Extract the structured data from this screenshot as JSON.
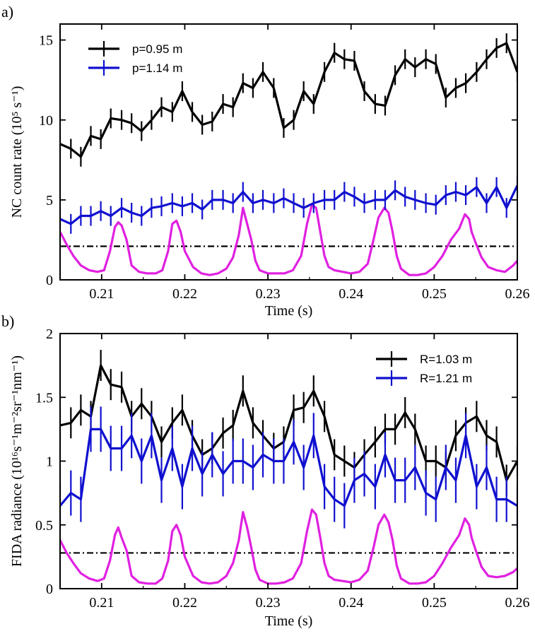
{
  "chart_data": [
    {
      "panel_label": "a)",
      "type": "line",
      "xlabel": "Time (s)",
      "ylabel": "NC count rate (10⁵ s⁻¹)",
      "xlim": [
        0.205,
        0.26
      ],
      "ylim": [
        0,
        16
      ],
      "xticks": [
        0.21,
        0.22,
        0.23,
        0.24,
        0.25,
        0.26
      ],
      "xtick_labels": [
        "0.21",
        "0.22",
        "0.23",
        "0.24",
        "0.25",
        "0.26"
      ],
      "yticks": [
        0,
        5,
        10,
        15
      ],
      "ytick_labels": [
        "0",
        "5",
        "10",
        "15"
      ],
      "legend_position": "top-left",
      "hline": 2.1,
      "series": [
        {
          "name": "p=0.95 m",
          "color": "#000000",
          "x": [
            0.205,
            0.2063,
            0.2075,
            0.2087,
            0.2099,
            0.2111,
            0.2124,
            0.2136,
            0.2148,
            0.216,
            0.2172,
            0.2185,
            0.2197,
            0.2209,
            0.2221,
            0.2233,
            0.2246,
            0.2258,
            0.227,
            0.2282,
            0.2294,
            0.2307,
            0.2319,
            0.2331,
            0.2343,
            0.2355,
            0.2368,
            0.238,
            0.2392,
            0.2404,
            0.2416,
            0.2429,
            0.2441,
            0.2453,
            0.2465,
            0.2477,
            0.249,
            0.2502,
            0.2514,
            0.2526,
            0.2538,
            0.2551,
            0.2563,
            0.2575,
            0.2587,
            0.26
          ],
          "y": [
            8.5,
            8.2,
            7.7,
            9.0,
            8.8,
            10.1,
            10.0,
            9.8,
            9.3,
            10.0,
            10.8,
            10.5,
            11.8,
            10.5,
            9.7,
            9.9,
            11.0,
            10.8,
            12.3,
            12.0,
            13.0,
            12.0,
            9.5,
            10.0,
            11.8,
            11.0,
            13.0,
            14.2,
            13.8,
            13.7,
            11.8,
            11.0,
            10.9,
            12.8,
            13.8,
            13.3,
            13.8,
            13.5,
            11.4,
            12.0,
            12.3,
            13.0,
            13.8,
            14.5,
            14.8,
            13.0
          ]
        },
        {
          "name": "p=1.14 m",
          "color": "#1010d0",
          "x": [
            0.205,
            0.2063,
            0.2075,
            0.2087,
            0.2099,
            0.2111,
            0.2124,
            0.2136,
            0.2148,
            0.216,
            0.2172,
            0.2185,
            0.2197,
            0.2209,
            0.2221,
            0.2233,
            0.2246,
            0.2258,
            0.227,
            0.2282,
            0.2294,
            0.2307,
            0.2319,
            0.2331,
            0.2343,
            0.2355,
            0.2368,
            0.238,
            0.2392,
            0.2404,
            0.2416,
            0.2429,
            0.2441,
            0.2453,
            0.2465,
            0.2477,
            0.249,
            0.2502,
            0.2514,
            0.2526,
            0.2538,
            0.2551,
            0.2563,
            0.2575,
            0.2587,
            0.26
          ],
          "y": [
            3.8,
            3.5,
            4.0,
            4.0,
            4.3,
            4.0,
            4.5,
            4.2,
            4.0,
            4.5,
            4.6,
            4.8,
            4.6,
            4.8,
            4.4,
            5.0,
            5.0,
            4.8,
            5.5,
            4.8,
            5.0,
            4.8,
            5.1,
            4.8,
            4.5,
            4.8,
            5.0,
            5.0,
            5.5,
            5.2,
            4.8,
            5.0,
            5.0,
            5.6,
            5.2,
            5.0,
            4.8,
            4.7,
            5.3,
            5.5,
            5.3,
            5.8,
            4.8,
            5.8,
            4.5,
            5.9
          ]
        }
      ],
      "magenta_trace": {
        "color": "#e020e0",
        "x": [
          0.205,
          0.2058,
          0.2066,
          0.2075,
          0.2085,
          0.2095,
          0.2103,
          0.211,
          0.2116,
          0.212,
          0.2124,
          0.213,
          0.2136,
          0.2145,
          0.2155,
          0.2165,
          0.2173,
          0.218,
          0.2185,
          0.219,
          0.2195,
          0.22,
          0.221,
          0.222,
          0.223,
          0.224,
          0.225,
          0.2258,
          0.2265,
          0.227,
          0.2275,
          0.228,
          0.2285,
          0.229,
          0.23,
          0.231,
          0.232,
          0.233,
          0.234,
          0.2347,
          0.2353,
          0.2358,
          0.2363,
          0.2368,
          0.2373,
          0.238,
          0.239,
          0.24,
          0.241,
          0.242,
          0.2427,
          0.2433,
          0.244,
          0.2445,
          0.245,
          0.2455,
          0.246,
          0.247,
          0.248,
          0.249,
          0.25,
          0.251,
          0.252,
          0.253,
          0.2537,
          0.2542,
          0.2545,
          0.255,
          0.2557,
          0.2565,
          0.2575,
          0.2585,
          0.2595,
          0.26
        ],
        "y": [
          3.0,
          2.2,
          1.5,
          0.9,
          0.6,
          0.5,
          0.6,
          1.8,
          3.3,
          3.6,
          3.4,
          2.5,
          0.9,
          0.5,
          0.4,
          0.4,
          0.6,
          1.8,
          3.5,
          3.7,
          3.0,
          1.8,
          0.8,
          0.4,
          0.3,
          0.4,
          0.7,
          1.4,
          2.8,
          4.5,
          3.5,
          2.5,
          1.2,
          0.6,
          0.4,
          0.4,
          0.4,
          0.6,
          1.5,
          3.5,
          4.7,
          4.5,
          3.0,
          1.5,
          0.8,
          0.6,
          0.5,
          0.4,
          0.5,
          1.0,
          2.5,
          3.9,
          4.5,
          4.2,
          3.0,
          1.5,
          0.7,
          0.3,
          0.3,
          0.4,
          0.8,
          1.5,
          2.5,
          3.2,
          4.1,
          3.8,
          3.0,
          2.3,
          1.4,
          0.8,
          0.6,
          0.5,
          0.9,
          1.2
        ]
      }
    },
    {
      "panel_label": "b)",
      "type": "line",
      "xlabel": "Time (s)",
      "ylabel": "FIDA radiance (10¹⁶s⁻¹m⁻²sr⁻¹nm⁻¹)",
      "xlim": [
        0.205,
        0.26
      ],
      "ylim": [
        0,
        2
      ],
      "xticks": [
        0.21,
        0.22,
        0.23,
        0.24,
        0.25,
        0.26
      ],
      "xtick_labels": [
        "0.21",
        "0.22",
        "0.23",
        "0.24",
        "0.25",
        "0.26"
      ],
      "yticks": [
        0,
        0.5,
        1,
        1.5,
        2
      ],
      "ytick_labels": [
        "0",
        "0.5",
        "1",
        "1.5",
        "2"
      ],
      "legend_position": "top-right",
      "hline": 0.28,
      "series": [
        {
          "name": "R=1.03 m",
          "color": "#000000",
          "x": [
            0.205,
            0.2063,
            0.2075,
            0.2087,
            0.2099,
            0.2111,
            0.2124,
            0.2136,
            0.2148,
            0.216,
            0.2172,
            0.2185,
            0.2197,
            0.2209,
            0.2221,
            0.2233,
            0.2246,
            0.2258,
            0.227,
            0.2282,
            0.2294,
            0.2307,
            0.2319,
            0.2331,
            0.2343,
            0.2355,
            0.2368,
            0.238,
            0.2392,
            0.2404,
            0.2416,
            0.2429,
            0.2441,
            0.2453,
            0.2465,
            0.2477,
            0.249,
            0.2502,
            0.2514,
            0.2526,
            0.2538,
            0.2551,
            0.2563,
            0.2575,
            0.2587,
            0.26
          ],
          "y": [
            1.28,
            1.3,
            1.4,
            1.35,
            1.75,
            1.6,
            1.58,
            1.35,
            1.45,
            1.35,
            1.15,
            1.3,
            1.4,
            1.2,
            1.05,
            1.1,
            1.22,
            1.28,
            1.55,
            1.3,
            1.2,
            1.1,
            1.15,
            1.4,
            1.42,
            1.55,
            1.35,
            1.05,
            1.0,
            0.95,
            1.05,
            1.15,
            1.25,
            1.25,
            1.38,
            1.25,
            1.0,
            1.0,
            0.95,
            1.2,
            1.3,
            1.35,
            1.2,
            1.15,
            0.85,
            1.0
          ]
        },
        {
          "name": "R=1.21 m",
          "color": "#1010d0",
          "x": [
            0.205,
            0.2063,
            0.2075,
            0.2087,
            0.2099,
            0.2111,
            0.2124,
            0.2136,
            0.2148,
            0.216,
            0.2172,
            0.2185,
            0.2197,
            0.2209,
            0.2221,
            0.2233,
            0.2246,
            0.2258,
            0.227,
            0.2282,
            0.2294,
            0.2307,
            0.2319,
            0.2331,
            0.2343,
            0.2355,
            0.2368,
            0.238,
            0.2392,
            0.2404,
            0.2416,
            0.2429,
            0.2441,
            0.2453,
            0.2465,
            0.2477,
            0.249,
            0.2502,
            0.2514,
            0.2526,
            0.2538,
            0.2551,
            0.2563,
            0.2575,
            0.2587,
            0.26
          ],
          "y": [
            0.65,
            0.75,
            0.7,
            1.25,
            1.25,
            1.1,
            1.1,
            1.2,
            1.0,
            1.2,
            0.85,
            1.1,
            0.8,
            1.1,
            0.9,
            1.05,
            0.9,
            1.0,
            1.0,
            0.95,
            1.05,
            1.0,
            1.0,
            1.15,
            0.95,
            1.2,
            0.8,
            0.7,
            0.65,
            0.85,
            0.9,
            0.8,
            1.05,
            0.85,
            0.85,
            0.95,
            0.75,
            0.7,
            0.95,
            0.85,
            1.2,
            0.8,
            0.95,
            0.7,
            0.7,
            0.65
          ]
        }
      ],
      "magenta_trace": {
        "color": "#e020e0",
        "x": [
          0.205,
          0.2058,
          0.2066,
          0.2075,
          0.2085,
          0.2095,
          0.2103,
          0.211,
          0.2116,
          0.212,
          0.2124,
          0.213,
          0.2136,
          0.2145,
          0.2155,
          0.2165,
          0.2173,
          0.218,
          0.2185,
          0.219,
          0.2195,
          0.22,
          0.221,
          0.222,
          0.223,
          0.224,
          0.225,
          0.2258,
          0.2265,
          0.227,
          0.2275,
          0.228,
          0.2285,
          0.229,
          0.23,
          0.231,
          0.232,
          0.233,
          0.234,
          0.2347,
          0.2353,
          0.2358,
          0.2363,
          0.2368,
          0.2373,
          0.238,
          0.239,
          0.24,
          0.241,
          0.242,
          0.2427,
          0.2433,
          0.244,
          0.2445,
          0.245,
          0.2455,
          0.246,
          0.247,
          0.248,
          0.249,
          0.25,
          0.251,
          0.252,
          0.253,
          0.2537,
          0.2542,
          0.2545,
          0.255,
          0.2557,
          0.2565,
          0.2575,
          0.2585,
          0.2595,
          0.26
        ],
        "y": [
          0.38,
          0.28,
          0.2,
          0.12,
          0.08,
          0.06,
          0.08,
          0.22,
          0.42,
          0.48,
          0.4,
          0.3,
          0.1,
          0.05,
          0.04,
          0.04,
          0.08,
          0.22,
          0.45,
          0.5,
          0.42,
          0.25,
          0.1,
          0.05,
          0.04,
          0.05,
          0.1,
          0.2,
          0.38,
          0.6,
          0.48,
          0.32,
          0.15,
          0.07,
          0.04,
          0.04,
          0.05,
          0.08,
          0.2,
          0.45,
          0.62,
          0.58,
          0.4,
          0.2,
          0.1,
          0.07,
          0.06,
          0.05,
          0.07,
          0.14,
          0.32,
          0.5,
          0.58,
          0.52,
          0.38,
          0.18,
          0.08,
          0.04,
          0.04,
          0.05,
          0.1,
          0.2,
          0.32,
          0.42,
          0.55,
          0.5,
          0.4,
          0.3,
          0.17,
          0.1,
          0.09,
          0.1,
          0.13,
          0.16
        ]
      }
    }
  ]
}
